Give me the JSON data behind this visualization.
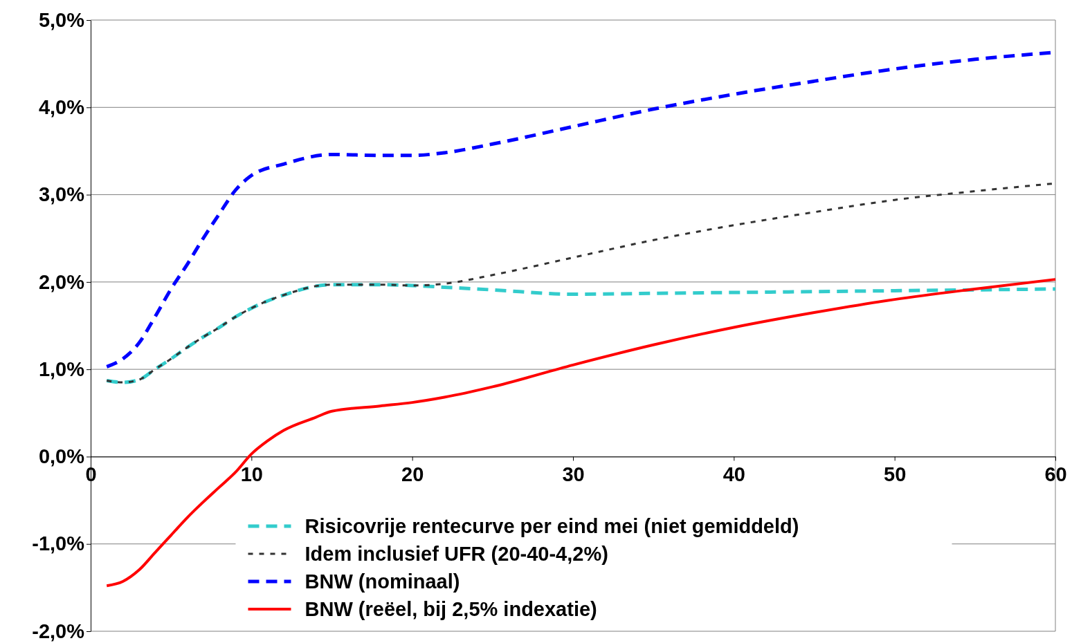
{
  "chart_data": {
    "type": "line",
    "xlim": [
      0,
      60
    ],
    "xticks": [
      0,
      10,
      20,
      30,
      40,
      50,
      60
    ],
    "ylim": [
      -2,
      5
    ],
    "yticks": [
      {
        "value": -2,
        "label": "-2,0%"
      },
      {
        "value": -1,
        "label": "-1,0%"
      },
      {
        "value": 0,
        "label": "0,0%"
      },
      {
        "value": 1,
        "label": "1,0%"
      },
      {
        "value": 2,
        "label": "2,0%"
      },
      {
        "value": 3,
        "label": "3,0%"
      },
      {
        "value": 4,
        "label": "4,0%"
      },
      {
        "value": 5,
        "label": "5,0%"
      }
    ],
    "grid": "y",
    "legend": "bottom",
    "marker": "none",
    "series": [
      {
        "name": "Risicovrije rentecurve per eind mei (niet gemiddeld)",
        "color": "#33cccc",
        "line_style": "dashed",
        "x": [
          1,
          2,
          3,
          4,
          5,
          6,
          7,
          8,
          9,
          10,
          12,
          15,
          18,
          20,
          22,
          25,
          30,
          35,
          40,
          45,
          50,
          55,
          60
        ],
        "values": [
          0.87,
          0.85,
          0.88,
          1.0,
          1.12,
          1.25,
          1.37,
          1.48,
          1.6,
          1.7,
          1.85,
          1.97,
          1.97,
          1.96,
          1.94,
          1.91,
          1.86,
          1.87,
          1.88,
          1.89,
          1.9,
          1.91,
          1.92
        ]
      },
      {
        "name": "Idem inclusief UFR (20-40-4,2%)",
        "color": "#333333",
        "line_style": "dotted",
        "x": [
          1,
          2,
          3,
          4,
          5,
          6,
          7,
          8,
          9,
          10,
          12,
          15,
          18,
          20,
          22,
          25,
          30,
          35,
          40,
          45,
          50,
          55,
          60
        ],
        "values": [
          0.87,
          0.85,
          0.88,
          1.0,
          1.12,
          1.25,
          1.37,
          1.48,
          1.6,
          1.7,
          1.85,
          1.97,
          1.97,
          1.96,
          1.98,
          2.08,
          2.28,
          2.48,
          2.65,
          2.8,
          2.94,
          3.04,
          3.13
        ]
      },
      {
        "name": "BNW (nominaal)",
        "color": "#0000ff",
        "line_style": "dashed",
        "x": [
          1,
          2,
          3,
          4,
          5,
          6,
          7,
          8,
          9,
          10,
          12,
          15,
          18,
          20,
          22,
          25,
          30,
          35,
          40,
          45,
          50,
          55,
          60
        ],
        "values": [
          1.03,
          1.12,
          1.3,
          1.6,
          1.92,
          2.2,
          2.5,
          2.78,
          3.05,
          3.22,
          3.35,
          3.46,
          3.45,
          3.45,
          3.48,
          3.58,
          3.78,
          3.98,
          4.15,
          4.3,
          4.44,
          4.55,
          4.63
        ]
      },
      {
        "name": "BNW (reëel, bij 2,5% indexatie)",
        "color": "#ff0000",
        "line_style": "solid",
        "x": [
          1,
          2,
          3,
          4,
          5,
          6,
          7,
          8,
          9,
          10,
          11,
          12,
          14,
          15,
          18,
          20,
          22,
          25,
          30,
          35,
          40,
          45,
          50,
          55,
          60
        ],
        "values": [
          -1.48,
          -1.43,
          -1.3,
          -1.1,
          -0.9,
          -0.7,
          -0.52,
          -0.35,
          -0.18,
          0.03,
          0.18,
          0.3,
          0.45,
          0.52,
          0.58,
          0.62,
          0.68,
          0.8,
          1.05,
          1.28,
          1.48,
          1.65,
          1.8,
          1.92,
          2.03
        ]
      }
    ]
  }
}
